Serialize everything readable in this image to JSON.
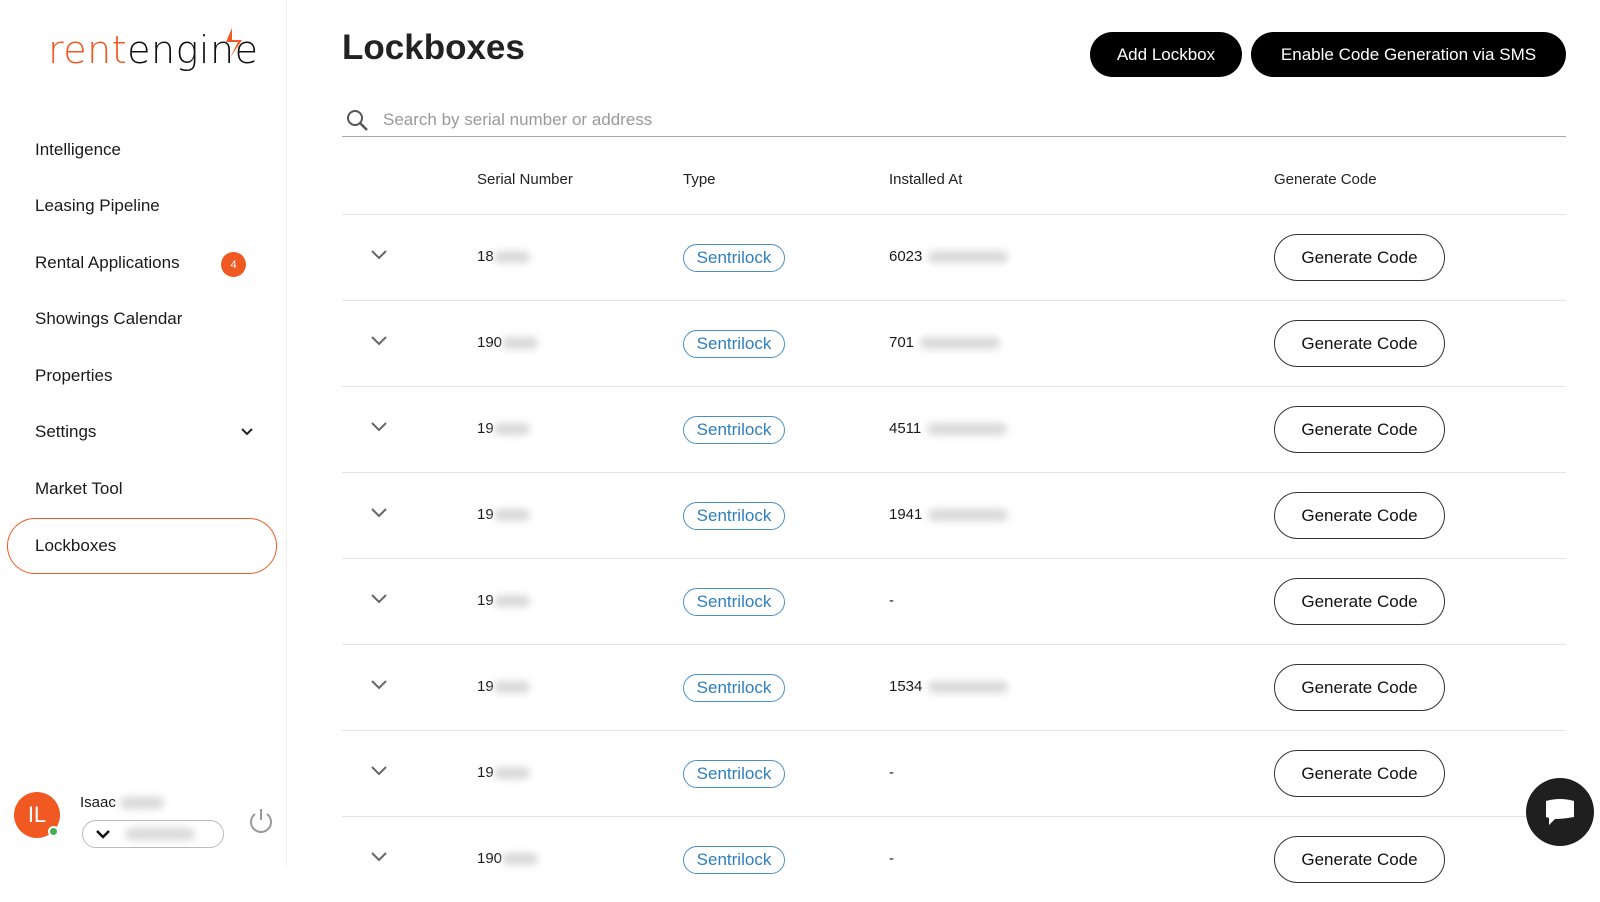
{
  "brand": {
    "logo_part1": "rent",
    "logo_part2": "engine",
    "accent": "#f05a22"
  },
  "sidebar": {
    "items": [
      {
        "label": "Intelligence"
      },
      {
        "label": "Leasing Pipeline"
      },
      {
        "label": "Rental Applications",
        "badge": "4"
      },
      {
        "label": "Showings Calendar"
      },
      {
        "label": "Properties"
      },
      {
        "label": "Settings",
        "icon": "chevron-down-icon"
      },
      {
        "label": "Market Tool"
      },
      {
        "label": "Lockboxes",
        "active": true
      }
    ],
    "user": {
      "initials": "IL",
      "first_name": "Isaac",
      "status_color": "#3fb24f"
    }
  },
  "header": {
    "title": "Lockboxes",
    "add_label": "Add Lockbox",
    "sms_label": "Enable Code Generation via SMS"
  },
  "search": {
    "placeholder": "Search by serial number or address",
    "value": ""
  },
  "table": {
    "columns": [
      "Serial Number",
      "Type",
      "Installed At",
      "Generate Code"
    ],
    "rows": [
      {
        "serial": "18",
        "type": "Sentrilock",
        "installed": "6023",
        "action": "Generate Code"
      },
      {
        "serial": "190",
        "type": "Sentrilock",
        "installed": "701",
        "action": "Generate Code"
      },
      {
        "serial": "19",
        "type": "Sentrilock",
        "installed": "4511",
        "action": "Generate Code"
      },
      {
        "serial": "19",
        "type": "Sentrilock",
        "installed": "1941",
        "action": "Generate Code"
      },
      {
        "serial": "19",
        "type": "Sentrilock",
        "installed": "-",
        "action": "Generate Code"
      },
      {
        "serial": "19",
        "type": "Sentrilock",
        "installed": "1534",
        "action": "Generate Code"
      },
      {
        "serial": "19",
        "type": "Sentrilock",
        "installed": "-",
        "action": "Generate Code"
      },
      {
        "serial": "190",
        "type": "Sentrilock",
        "installed": "-",
        "action": "Generate Code"
      }
    ]
  }
}
